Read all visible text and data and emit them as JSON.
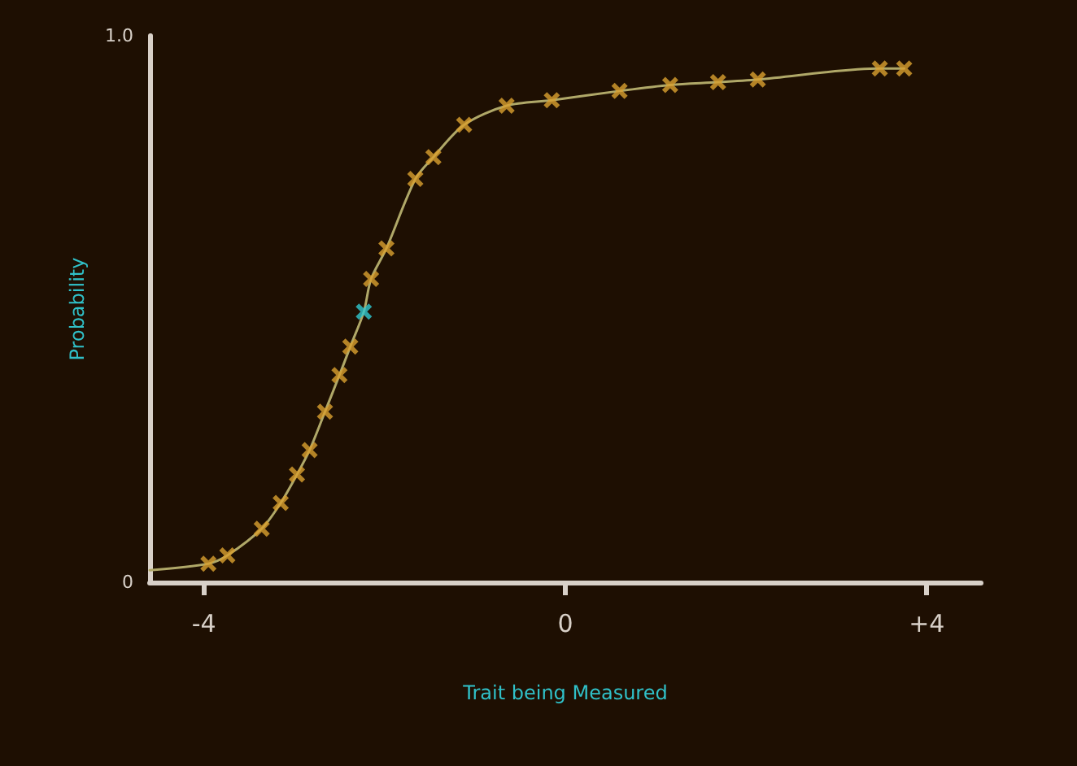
{
  "chart_data": {
    "type": "line",
    "xlabel": "Trait being Measured",
    "ylabel": "Probability",
    "xlim": [
      -4.6,
      4.6
    ],
    "ylim": [
      0,
      1
    ],
    "xticks": [
      {
        "value": -4,
        "label": "-4"
      },
      0,
      {
        "value": 4,
        "label": "+4"
      }
    ],
    "yticks": [
      0,
      {
        "value": 1,
        "label": "1.0"
      }
    ],
    "grid": false,
    "series": [
      {
        "marker": "none",
        "line_style": "solid",
        "color": "#b0a868",
        "x": [
          -4.6,
          -3.95,
          -3.74,
          -3.36,
          -3.15,
          -2.97,
          -2.83,
          -2.66,
          -2.5,
          -2.38,
          -2.23,
          -2.15,
          -1.98,
          -1.66,
          -1.46,
          -1.12,
          -0.65,
          -0.15,
          0.6,
          1.16,
          1.69,
          2.13,
          3.48,
          3.75
        ],
        "values": [
          0.022,
          0.034,
          0.049,
          0.098,
          0.145,
          0.197,
          0.242,
          0.312,
          0.379,
          0.431,
          0.495,
          0.555,
          0.611,
          0.738,
          0.778,
          0.837,
          0.872,
          0.882,
          0.899,
          0.91,
          0.915,
          0.92,
          0.94,
          0.94
        ]
      },
      {
        "type": "scatter",
        "marker": "cross",
        "color": "#d9a030",
        "x": [
          -3.95,
          -3.74,
          -3.36,
          -3.15,
          -2.97,
          -2.83,
          -2.66,
          -2.5,
          -2.38,
          -2.15,
          -1.98,
          -1.66,
          -1.46,
          -1.12,
          -0.65,
          -0.15,
          0.6,
          1.16,
          1.69,
          2.13,
          3.48,
          3.75
        ],
        "values": [
          0.034,
          0.049,
          0.098,
          0.145,
          0.197,
          0.242,
          0.312,
          0.379,
          0.431,
          0.555,
          0.611,
          0.738,
          0.778,
          0.837,
          0.872,
          0.882,
          0.899,
          0.91,
          0.915,
          0.92,
          0.94,
          0.94
        ]
      },
      {
        "type": "scatter",
        "marker": "cross",
        "color": "#30c8d0",
        "x": [
          -2.23
        ],
        "values": [
          0.495
        ]
      }
    ]
  }
}
